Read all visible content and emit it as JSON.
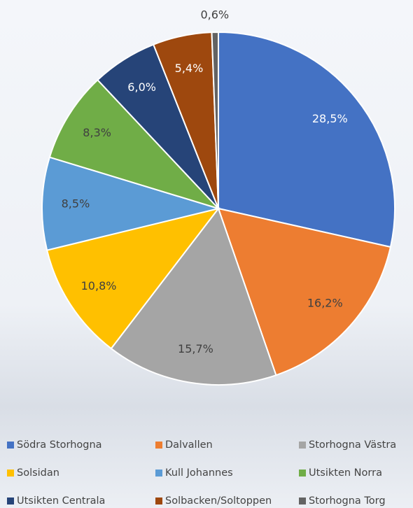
{
  "chart_data": {
    "type": "pie",
    "categories": [
      "Södra Storhogna",
      "Dalvallen",
      "Storhogna Västra",
      "Solsidan",
      "Kull Johannes",
      "Utsikten Norra",
      "Utsikten Centrala",
      "Solbacken/Soltoppen",
      "Storhogna Torg"
    ],
    "values": [
      28.5,
      16.2,
      15.7,
      10.8,
      8.5,
      8.3,
      6.0,
      5.4,
      0.6
    ],
    "value_labels": [
      "28,5%",
      "16,2%",
      "15,7%",
      "10,8%",
      "8,5%",
      "8,3%",
      "6,0%",
      "5,4%",
      "0,6%"
    ],
    "colors": [
      "#4472c4",
      "#ed7d31",
      "#a5a5a5",
      "#ffc000",
      "#5b9bd5",
      "#70ad47",
      "#264478",
      "#9e480e",
      "#636363"
    ],
    "legend": "bottom"
  }
}
